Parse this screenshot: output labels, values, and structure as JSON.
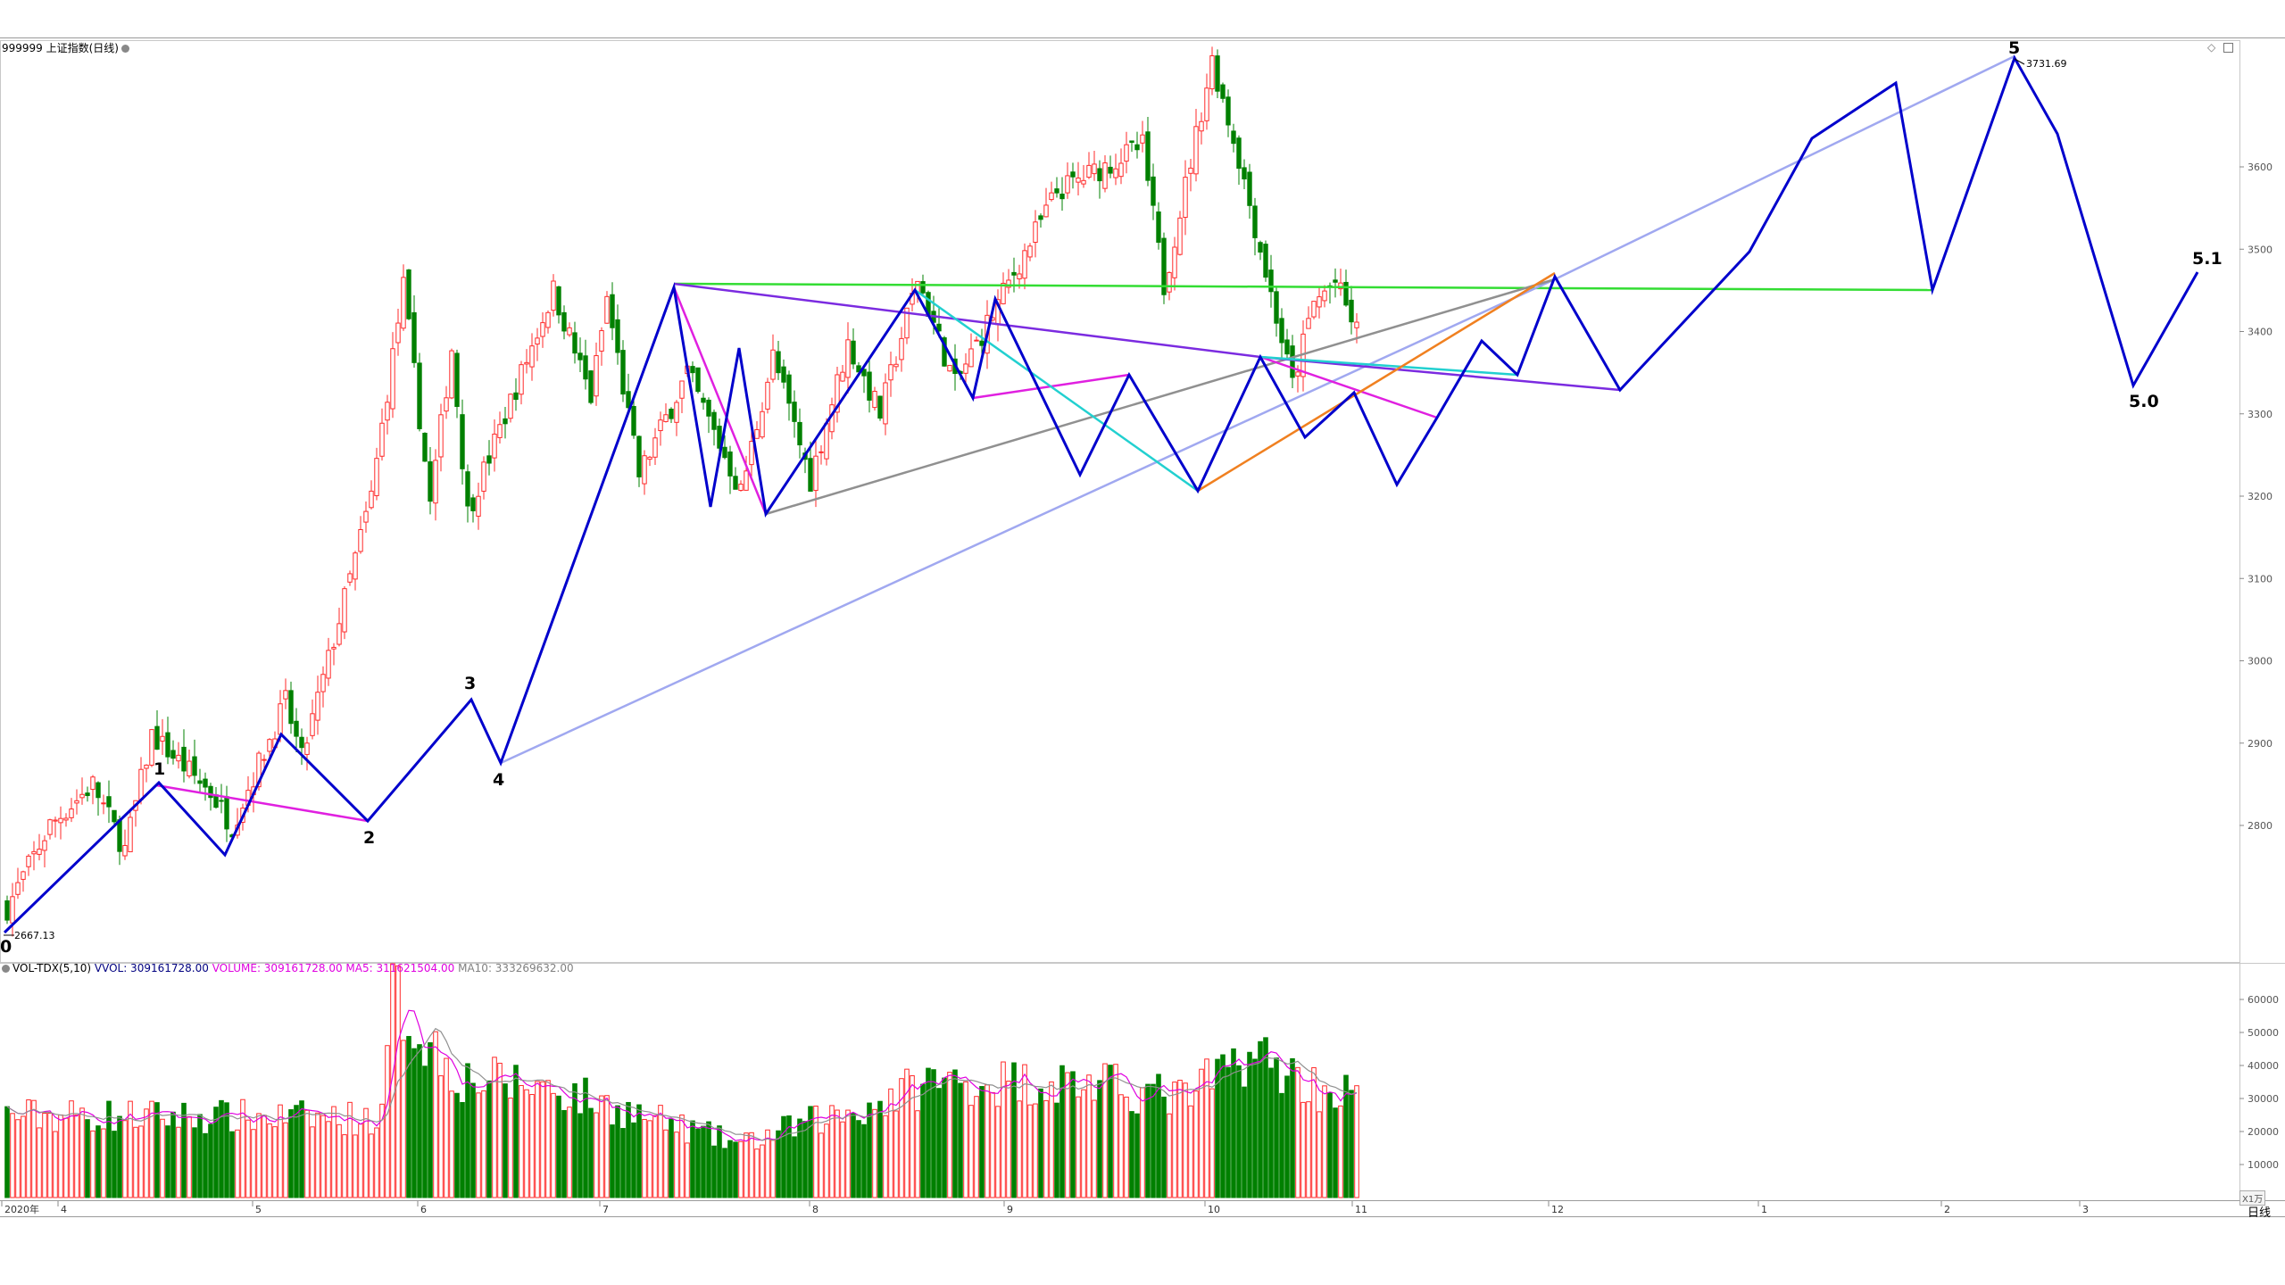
{
  "header": {
    "symbol_title": "999999 上证指数(日线)"
  },
  "volume_header": {
    "indicator": "VOL-TDX(5,10)",
    "vvol": "VVOL: 309161728.00",
    "volume": "VOLUME: 309161728.00",
    "ma5": "MA5: 311621504.00",
    "ma10": "MA10: 333269632.00"
  },
  "price_axis": {
    "labels": [
      "3600",
      "3500",
      "3400",
      "3300",
      "3200",
      "3100",
      "3000",
      "2900",
      "2800"
    ]
  },
  "volume_axis": {
    "labels": [
      "60000",
      "50000",
      "40000",
      "30000",
      "20000",
      "10000"
    ],
    "unit": "X1万"
  },
  "time_axis": {
    "labels": [
      "2020年",
      "4",
      "5",
      "6",
      "7",
      "8",
      "9",
      "10",
      "11",
      "12",
      "1",
      "2",
      "3"
    ],
    "period": "日线"
  },
  "annotations": {
    "low_value": "2667.13",
    "high_value": "3731.69",
    "waves": [
      "0",
      "1",
      "2",
      "3",
      "4",
      "5",
      "5.0",
      "5.1"
    ]
  },
  "colors": {
    "up": "#ff2a2a",
    "down": "#008000",
    "wave_line": "#0000cc",
    "green_line": "#33dd33",
    "purple_line": "#7b2be0",
    "magenta_line": "#e020e0",
    "cyan_line": "#22d0d0",
    "orange_line": "#f08020",
    "grey_line": "#909090",
    "lavender_line": "#a0a8f0",
    "vol_ma5": "#e000e0",
    "vol_ma10": "#909090"
  },
  "chart_data": {
    "type": "candlestick",
    "price_range": [
      2640,
      3760
    ],
    "volume_range": [
      0,
      68000
    ],
    "closes_anchor": [
      [
        0,
        2700
      ],
      [
        8,
        2800
      ],
      [
        16,
        2850
      ],
      [
        22,
        2770
      ],
      [
        27,
        2910
      ],
      [
        38,
        2840
      ],
      [
        42,
        2800
      ],
      [
        52,
        2950
      ],
      [
        55,
        2880
      ],
      [
        62,
        3050
      ],
      [
        68,
        3200
      ],
      [
        74,
        3455
      ],
      [
        79,
        3190
      ],
      [
        83,
        3380
      ],
      [
        86,
        3180
      ],
      [
        102,
        3450
      ],
      [
        109,
        3320
      ],
      [
        112,
        3440
      ],
      [
        118,
        3225
      ],
      [
        127,
        3350
      ],
      [
        137,
        3205
      ],
      [
        143,
        3370
      ],
      [
        150,
        3220
      ],
      [
        157,
        3385
      ],
      [
        163,
        3300
      ],
      [
        170,
        3465
      ],
      [
        177,
        3335
      ],
      [
        196,
        3570
      ],
      [
        212,
        3625
      ],
      [
        216,
        3455
      ],
      [
        225,
        3730
      ],
      [
        230,
        3610
      ],
      [
        240,
        3335
      ],
      [
        244,
        3435
      ],
      [
        248,
        3460
      ],
      [
        252,
        3400
      ]
    ],
    "volume_anchor": [
      [
        0,
        25000
      ],
      [
        70,
        24000
      ],
      [
        72,
        62000
      ],
      [
        76,
        52000
      ],
      [
        85,
        36000
      ],
      [
        100,
        34000
      ],
      [
        120,
        24000
      ],
      [
        137,
        16000
      ],
      [
        150,
        23000
      ],
      [
        160,
        27000
      ],
      [
        172,
        35000
      ],
      [
        200,
        35000
      ],
      [
        220,
        30000
      ],
      [
        232,
        44000
      ],
      [
        245,
        33000
      ],
      [
        252,
        31000
      ]
    ]
  }
}
